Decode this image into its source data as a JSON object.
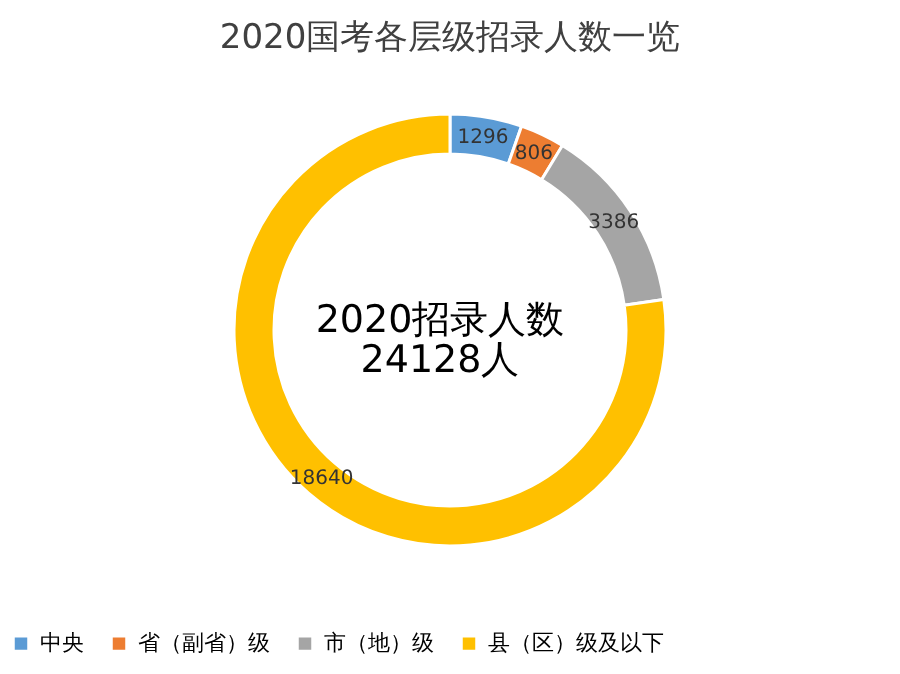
{
  "chart_data": {
    "type": "donut",
    "title": "2020国考各层级招录人数一览",
    "categories": [
      "中央",
      "省（副省）级",
      "市（地）级",
      "县（区）级及以下"
    ],
    "values": [
      1296,
      806,
      3386,
      18640
    ],
    "colors": [
      "#5b9bd5",
      "#ed7d31",
      "#a5a5a5",
      "#ffc000"
    ],
    "data_labels": true,
    "legend": "bottom",
    "annotations": [
      "2020招录人数",
      "24128人"
    ]
  }
}
